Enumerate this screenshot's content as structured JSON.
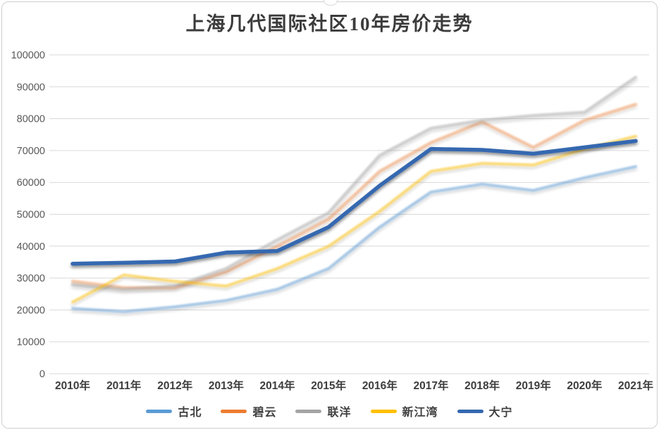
{
  "chart_data": {
    "type": "line",
    "title": "上海几代国际社区10年房价走势",
    "xlabel": "",
    "ylabel": "",
    "categories": [
      "2010年",
      "2011年",
      "2012年",
      "2013年",
      "2014年",
      "2015年",
      "2016年",
      "2017年",
      "2018年",
      "2019年",
      "2020年",
      "2021年"
    ],
    "series": [
      {
        "name": "古北",
        "color": "#5B9BD5",
        "opacity": 0.5,
        "width": 4,
        "values": [
          20500,
          19500,
          21000,
          23000,
          26500,
          33000,
          46000,
          57000,
          59500,
          57500,
          61500,
          65000
        ]
      },
      {
        "name": "碧云",
        "color": "#ED7D31",
        "opacity": 0.4,
        "width": 4.5,
        "values": [
          29000,
          27000,
          27000,
          32000,
          40000,
          48500,
          63500,
          72500,
          79000,
          71000,
          79500,
          84500
        ]
      },
      {
        "name": "联洋",
        "color": "#A5A5A5",
        "opacity": 0.45,
        "width": 4.5,
        "values": [
          28000,
          26500,
          27500,
          33000,
          42000,
          50500,
          68500,
          77000,
          79500,
          81000,
          82000,
          93000
        ]
      },
      {
        "name": "新江湾",
        "color": "#FFC000",
        "opacity": 0.5,
        "width": 4,
        "values": [
          22500,
          31000,
          29000,
          27500,
          33000,
          40000,
          51000,
          63500,
          66000,
          65500,
          70500,
          74500
        ]
      },
      {
        "name": "大宁",
        "color": "#3468B0",
        "opacity": 1.0,
        "width": 5.5,
        "values": [
          34500,
          34800,
          35200,
          38000,
          38500,
          46000,
          59000,
          70500,
          70200,
          69000,
          71000,
          73000
        ]
      }
    ],
    "ylim": [
      0,
      100000
    ],
    "ytick_interval": 10000,
    "ytick_labels": [
      "0",
      "10000",
      "20000",
      "30000",
      "40000",
      "50000",
      "60000",
      "70000",
      "80000",
      "90000",
      "100000"
    ],
    "grid": "horizontal",
    "gridline_color": "#d9d9d9",
    "axis_label_color": "#595959",
    "x_label_color": "#3d3d3d",
    "legend_position": "bottom"
  }
}
